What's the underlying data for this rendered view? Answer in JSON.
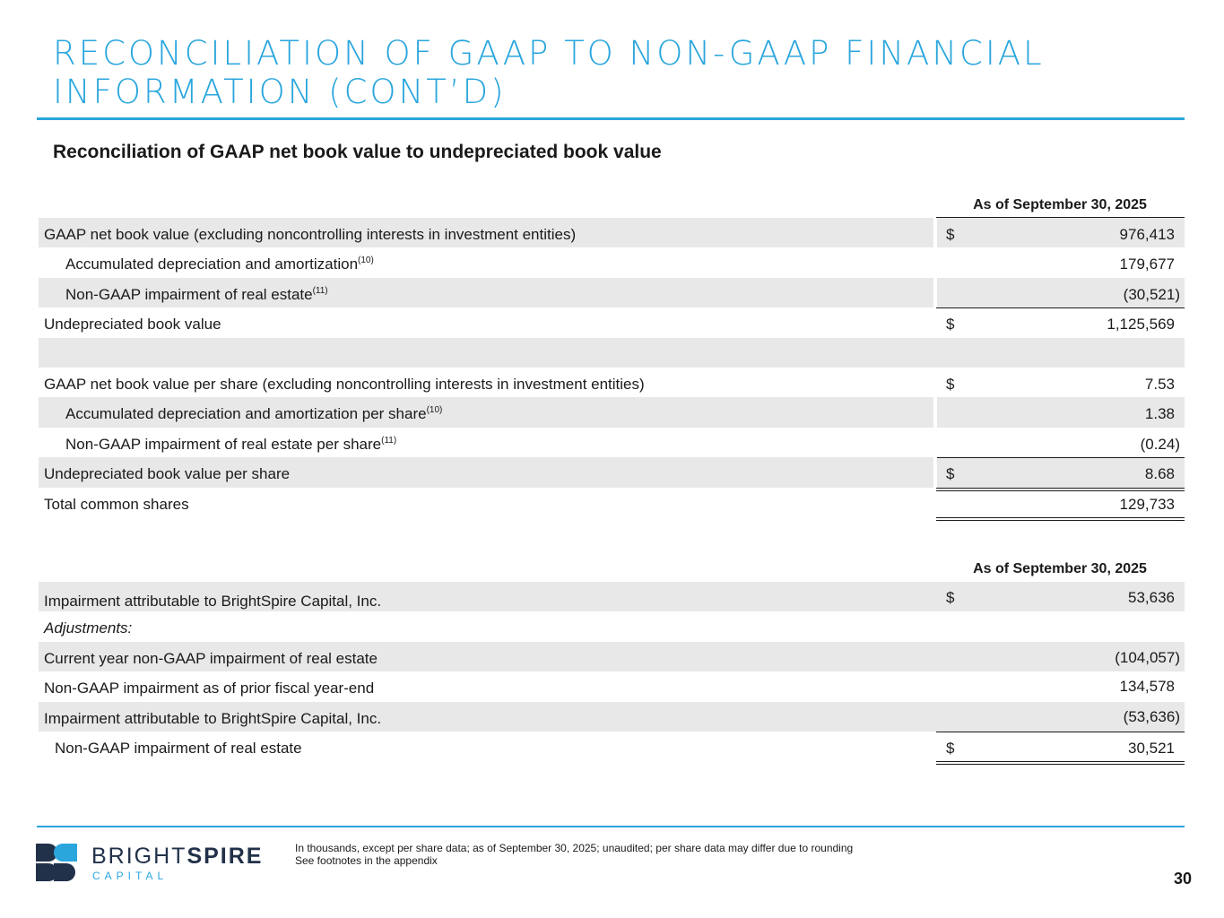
{
  "title": {
    "line1": "RECONCILIATION OF GAAP TO NON-GAAP FINANCIAL",
    "line2": "INFORMATION (CONT’D)"
  },
  "subtitle": "Reconciliation of GAAP net book value to undepreciated book value",
  "table1": {
    "header": "As of September 30, 2025",
    "rows": [
      {
        "label": "GAAP net book value (excluding noncontrolling interests in investment entities)",
        "currency": "$",
        "value": "976,413"
      },
      {
        "label": "Accumulated depreciation and amortization",
        "sup": "(10)",
        "value": "179,677"
      },
      {
        "label": "Non-GAAP impairment of real estate",
        "sup": "(11)",
        "value": "(30,521)"
      },
      {
        "label": "Undepreciated book value",
        "currency": "$",
        "value": "1,125,569"
      },
      {
        "label": "GAAP net book value per share (excluding noncontrolling interests in investment entities)",
        "currency": "$",
        "value": "7.53"
      },
      {
        "label": "Accumulated depreciation and amortization per share",
        "sup": "(10)",
        "value": "1.38"
      },
      {
        "label": "Non-GAAP impairment of real estate per share",
        "sup": "(11)",
        "value": "(0.24)"
      },
      {
        "label": "Undepreciated book value per share",
        "currency": "$",
        "value": "8.68"
      },
      {
        "label": "Total common shares",
        "value": "129,733"
      }
    ]
  },
  "table2": {
    "header": "As of September 30, 2025",
    "rows": [
      {
        "label": "Impairment attributable to BrightSpire Capital, Inc.",
        "currency": "$",
        "value": "53,636"
      },
      {
        "label": "Adjustments:"
      },
      {
        "label": "Current year non-GAAP impairment of real estate",
        "value": "(104,057)"
      },
      {
        "label": "Non-GAAP impairment as of prior fiscal year-end",
        "value": "134,578"
      },
      {
        "label": "Impairment attributable to BrightSpire Capital, Inc.",
        "value": "(53,636)"
      },
      {
        "label": "Non-GAAP impairment of real estate",
        "currency": "$",
        "value": "30,521"
      }
    ]
  },
  "footer": {
    "note1": "In thousands, except per share data; as of September 30, 2025; unaudited; per share data may differ due to rounding",
    "note2": "See footnotes in the appendix",
    "page_number": "30",
    "logo_bright": "BRIGHT",
    "logo_spire": "SPIRE",
    "logo_sub": "CAPITAL",
    "brand_color": "#2aa6dd",
    "logo_color": "#22314a"
  }
}
